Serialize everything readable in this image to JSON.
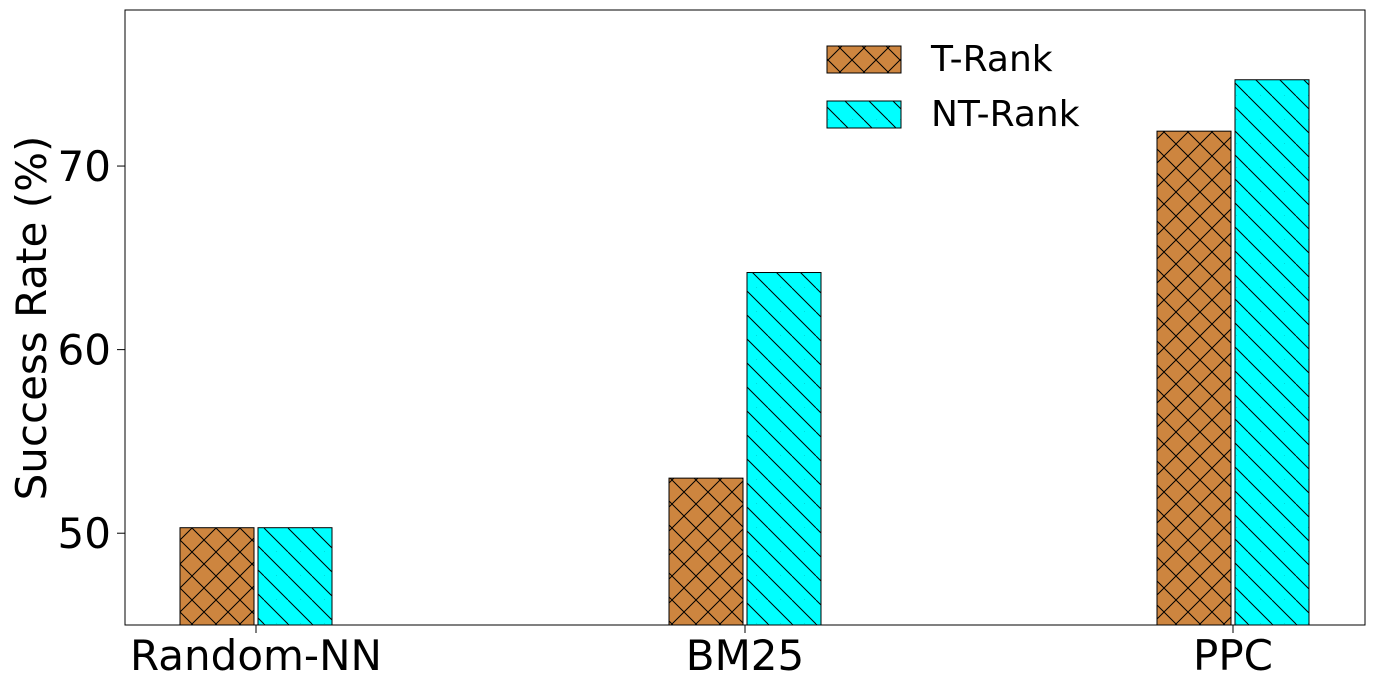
{
  "chart_data": {
    "type": "bar",
    "categories": [
      "Random-NN",
      "BM25",
      "PPC"
    ],
    "series": [
      {
        "name": "T-Rank",
        "values": [
          50.3,
          53.0,
          71.9
        ],
        "color": "#cd853f",
        "hatch": "crosshatch"
      },
      {
        "name": "NT-Rank",
        "values": [
          50.3,
          64.2,
          74.7
        ],
        "color": "#00ffff",
        "hatch": "backslash"
      }
    ],
    "xlabel": "",
    "ylabel": "Success Rate (%)",
    "ylim": [
      45,
      78.5
    ],
    "yticks": [
      50,
      60,
      70
    ],
    "legend_position": "top-right",
    "grid": false
  }
}
